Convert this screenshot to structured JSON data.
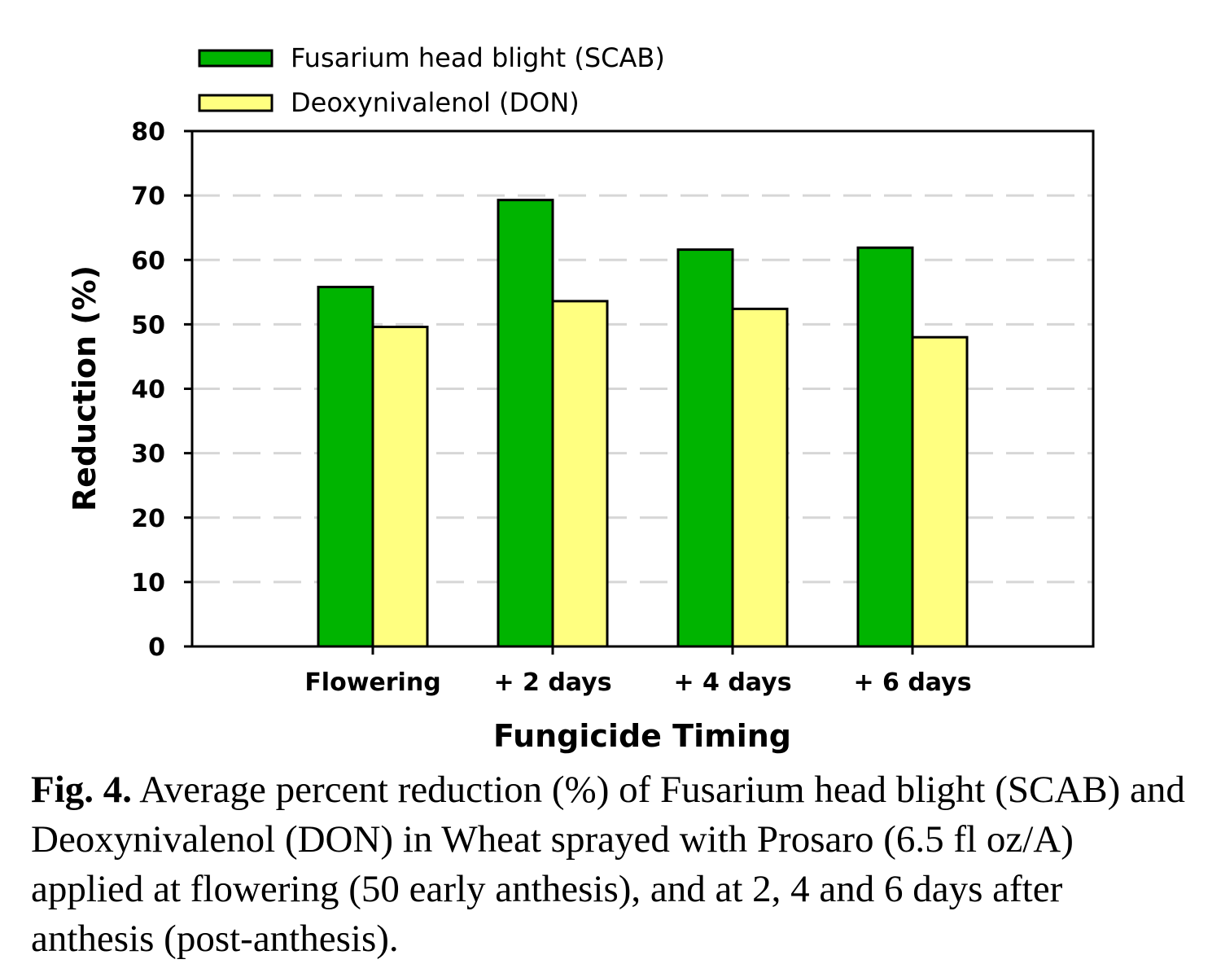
{
  "chart_data": {
    "type": "bar",
    "categories": [
      "Flowering",
      "+ 2 days",
      "+ 4 days",
      "+ 6 days"
    ],
    "series": [
      {
        "name": "Fusarium head blight (SCAB)",
        "values": [
          55.8,
          69.3,
          61.6,
          61.9
        ],
        "color": "#00b400"
      },
      {
        "name": "Deoxynivalenol (DON)",
        "values": [
          49.6,
          53.6,
          52.4,
          48.0
        ],
        "color": "#ffff80"
      }
    ],
    "xlabel": "Fungicide Timing",
    "ylabel": "Reduction (%)",
    "ylim": [
      0,
      80
    ],
    "yticks": [
      0,
      10,
      20,
      30,
      40,
      50,
      60,
      70,
      80
    ],
    "grid": true,
    "legend_position": "top-left"
  },
  "caption": {
    "label": "Fig. 4.",
    "text": " Average percent reduction (%) of Fusarium head blight (SCAB) and Deoxynivalenol (DON) in Wheat sprayed with Prosaro (6.5 fl oz/A) applied at flowering (50 early anthesis), and at 2, 4 and 6 days after anthesis (post-anthesis)."
  }
}
